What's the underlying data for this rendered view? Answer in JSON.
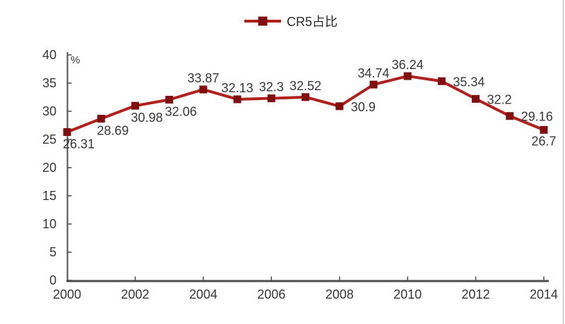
{
  "window": {
    "bg_color": "#ffffff",
    "right_border_color": "#b3b3b3"
  },
  "legend": {
    "label": "CR5占比",
    "position": "top-center"
  },
  "chart_data": {
    "type": "line",
    "title": "",
    "xlabel": "",
    "ylabel": "%",
    "series": [
      {
        "name": "CR5占比",
        "x": [
          2000,
          2001,
          2002,
          2003,
          2004,
          2005,
          2006,
          2007,
          2008,
          2009,
          2010,
          2011,
          2012,
          2013,
          2014
        ],
        "values": [
          26.31,
          28.69,
          30.98,
          32.06,
          33.87,
          32.13,
          32.3,
          32.52,
          30.9,
          34.74,
          36.24,
          35.34,
          32.2,
          29.16,
          26.7
        ],
        "labels": [
          "26.31",
          "28.69",
          "30.98",
          "32.06",
          "33.87",
          "32.13",
          "32.3",
          "32.52",
          "30.9",
          "34.74",
          "36.24",
          "35.34",
          "32.2",
          "29.16",
          "26.7"
        ],
        "label_positions": [
          "below-start",
          "below-start",
          "below-start",
          "below-start",
          "above",
          "above",
          "above",
          "above",
          "right",
          "above",
          "above",
          "right",
          "right",
          "right",
          "below"
        ]
      }
    ],
    "xlim": [
      2000,
      2014
    ],
    "ylim": [
      0,
      40
    ],
    "ytick_step": 5,
    "xticks": [
      "2000",
      "2002",
      "2004",
      "2006",
      "2008",
      "2010",
      "2012",
      "2014"
    ],
    "xtick_years": [
      2000,
      2002,
      2004,
      2006,
      2008,
      2010,
      2012,
      2014
    ],
    "yticks": [
      "0",
      "5",
      "10",
      "15",
      "20",
      "25",
      "30",
      "35",
      "40"
    ],
    "ytick_values": [
      0,
      5,
      10,
      15,
      20,
      25,
      30,
      35,
      40
    ],
    "grid": false,
    "legend_position": "top-center",
    "line_color": "#b0201c",
    "marker_color": "#801010",
    "axis_color": "#4d4d4d",
    "text_color": "#373737",
    "marker_shape": "square"
  }
}
